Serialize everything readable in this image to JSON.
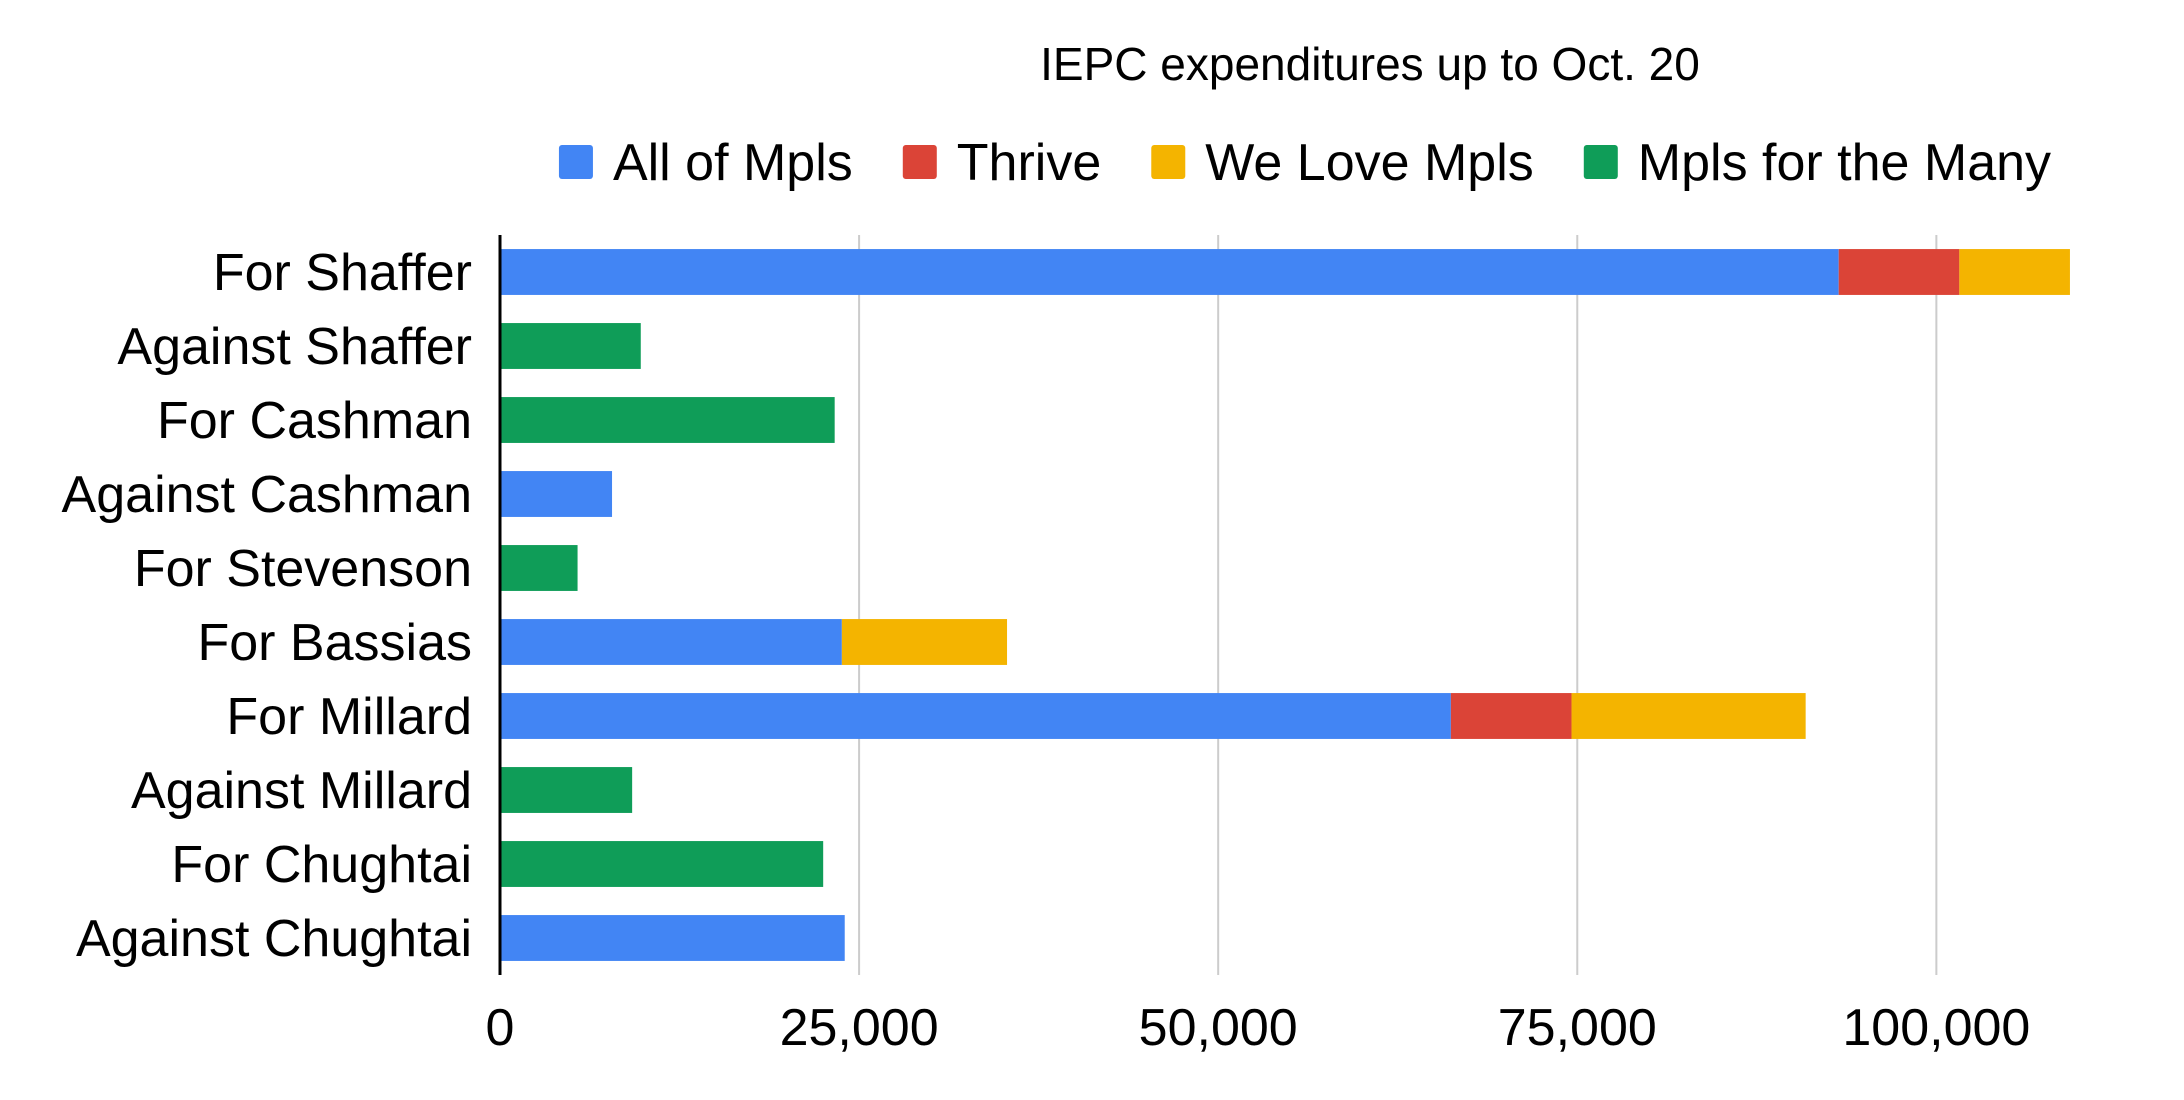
{
  "chart_data": {
    "type": "bar",
    "orientation": "horizontal",
    "stacked": true,
    "title": "IEPC expenditures up to Oct. 20",
    "xlabel": "",
    "ylabel": "",
    "xlim": [
      0,
      110000
    ],
    "x_ticks": [
      0,
      25000,
      50000,
      75000,
      100000
    ],
    "x_tick_labels": [
      "0",
      "25,000",
      "50,000",
      "75,000",
      "100,000"
    ],
    "grid": true,
    "legend_position": "top",
    "categories": [
      "For Shaffer",
      "Against Shaffer",
      "For Cashman",
      "Against Cashman",
      "For Stevenson",
      "For Bassias",
      "For Millard",
      "Against Millard",
      "For Chughtai",
      "Against Chughtai"
    ],
    "series": [
      {
        "name": "All of Mpls",
        "color": "#4285f4",
        "values": [
          93200,
          0,
          0,
          7800,
          0,
          23800,
          66200,
          0,
          0,
          24000
        ]
      },
      {
        "name": "Thrive",
        "color": "#db4437",
        "values": [
          8400,
          0,
          0,
          0,
          0,
          0,
          8400,
          0,
          0,
          0
        ]
      },
      {
        "name": "We Love Mpls",
        "color": "#f4b400",
        "values": [
          7700,
          0,
          0,
          0,
          0,
          11500,
          16300,
          0,
          0,
          0
        ]
      },
      {
        "name": "Mpls for the Many",
        "color": "#0f9d58",
        "values": [
          0,
          9800,
          23300,
          0,
          5400,
          0,
          0,
          9200,
          22500,
          0
        ]
      }
    ]
  }
}
